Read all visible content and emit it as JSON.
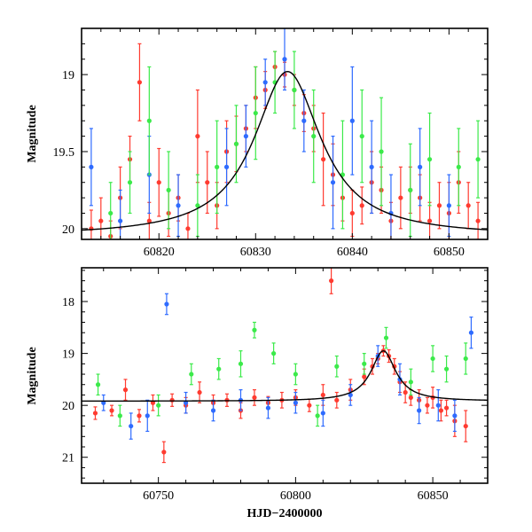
{
  "chart_data": [
    {
      "type": "scatter",
      "panel": "top",
      "title": "",
      "xlabel": "",
      "ylabel": "Magnitude",
      "xlim": [
        60812,
        60854
      ],
      "ylim": [
        20.07,
        18.7
      ],
      "y_inverted": true,
      "xticks": [
        60820,
        60830,
        60840,
        60850
      ],
      "yticks": [
        19,
        19.5,
        20
      ],
      "ytick_labels": [
        "19",
        "19.5",
        "20"
      ],
      "model": {
        "baseline": 20.05,
        "peak_x": 60833.3,
        "peak_y": 18.98,
        "tE": 4.2
      },
      "series": [
        {
          "color": "#ff3b30",
          "points": [
            [
              60813,
              20.0,
              0.12
            ],
            [
              60814,
              19.95,
              0.15
            ],
            [
              60815,
              20.05,
              0.1
            ],
            [
              60816,
              19.8,
              0.2
            ],
            [
              60817,
              19.55,
              0.15
            ],
            [
              60818,
              19.05,
              0.25
            ],
            [
              60819,
              19.95,
              0.12
            ],
            [
              60820,
              19.7,
              0.22
            ],
            [
              60821,
              19.9,
              0.15
            ],
            [
              60822,
              19.8,
              0.15
            ],
            [
              60823,
              20.0,
              0.1
            ],
            [
              60824,
              19.4,
              0.3
            ],
            [
              60825,
              19.7,
              0.2
            ],
            [
              60826,
              19.85,
              0.15
            ],
            [
              60827,
              19.5,
              0.2
            ],
            [
              60828,
              19.45,
              0.18
            ],
            [
              60829,
              19.35,
              0.15
            ],
            [
              60830,
              19.15,
              0.2
            ],
            [
              60831,
              19.1,
              0.12
            ],
            [
              60832,
              18.95,
              0.1
            ],
            [
              60833,
              19.0,
              0.08
            ],
            [
              60834,
              19.1,
              0.1
            ],
            [
              60835,
              19.25,
              0.12
            ],
            [
              60836,
              19.35,
              0.15
            ],
            [
              60837,
              19.55,
              0.3
            ],
            [
              60838,
              19.65,
              0.2
            ],
            [
              60839,
              19.8,
              0.15
            ],
            [
              60840,
              19.9,
              0.15
            ],
            [
              60841,
              19.85,
              0.12
            ],
            [
              60842,
              19.7,
              0.2
            ],
            [
              60843,
              19.75,
              0.15
            ],
            [
              60844,
              19.95,
              0.12
            ],
            [
              60845,
              19.8,
              0.2
            ],
            [
              60846,
              19.75,
              0.15
            ],
            [
              60847,
              19.8,
              0.15
            ],
            [
              60848,
              19.95,
              0.12
            ],
            [
              60849,
              19.85,
              0.15
            ],
            [
              60850,
              19.9,
              0.2
            ],
            [
              60851,
              19.7,
              0.2
            ],
            [
              60852,
              19.85,
              0.15
            ],
            [
              60853,
              19.95,
              0.12
            ]
          ]
        },
        {
          "color": "#2e6bff",
          "points": [
            [
              60813,
              19.6,
              0.25
            ],
            [
              60816,
              19.95,
              0.2
            ],
            [
              60819,
              19.65,
              0.25
            ],
            [
              60822,
              19.85,
              0.2
            ],
            [
              60827,
              19.6,
              0.25
            ],
            [
              60829,
              19.4,
              0.2
            ],
            [
              60831,
              19.05,
              0.15
            ],
            [
              60833,
              18.9,
              0.2
            ],
            [
              60835,
              19.3,
              0.2
            ],
            [
              60838,
              19.7,
              0.3
            ],
            [
              60840,
              19.3,
              0.35
            ],
            [
              60842,
              19.6,
              0.3
            ],
            [
              60844,
              19.9,
              0.25
            ],
            [
              60847,
              19.6,
              0.25
            ],
            [
              60850,
              19.85,
              0.2
            ]
          ]
        },
        {
          "color": "#3bea4a",
          "points": [
            [
              60815,
              19.9,
              0.2
            ],
            [
              60817,
              19.7,
              0.2
            ],
            [
              60819,
              19.3,
              0.35
            ],
            [
              60821,
              19.75,
              0.25
            ],
            [
              60824,
              19.85,
              0.2
            ],
            [
              60826,
              19.6,
              0.3
            ],
            [
              60828,
              19.45,
              0.25
            ],
            [
              60830,
              19.25,
              0.3
            ],
            [
              60832,
              19.05,
              0.2
            ],
            [
              60834,
              19.1,
              0.25
            ],
            [
              60836,
              19.4,
              0.3
            ],
            [
              60839,
              19.65,
              0.35
            ],
            [
              60841,
              19.4,
              0.3
            ],
            [
              60843,
              19.5,
              0.35
            ],
            [
              60846,
              19.75,
              0.3
            ],
            [
              60848,
              19.55,
              0.3
            ],
            [
              60851,
              19.6,
              0.25
            ],
            [
              60853,
              19.55,
              0.25
            ]
          ]
        }
      ]
    },
    {
      "type": "scatter",
      "panel": "bottom",
      "title": "",
      "xlabel": "HJD−2400000",
      "ylabel": "Magnitude",
      "xlim": [
        60722,
        60870
      ],
      "ylim": [
        21.5,
        17.35
      ],
      "y_inverted": true,
      "xticks": [
        60750,
        60800,
        60850
      ],
      "yticks": [
        18,
        19,
        20,
        21
      ],
      "ytick_labels": [
        "18",
        "19",
        "20",
        "21"
      ],
      "model": {
        "baseline": 19.92,
        "peak_x": 60832.0,
        "peak_y": 18.95,
        "tE": 5.5
      },
      "series": [
        {
          "color": "#ff3b30",
          "points": [
            [
              60727,
              20.15,
              0.12
            ],
            [
              60733,
              20.1,
              0.1
            ],
            [
              60738,
              19.7,
              0.2
            ],
            [
              60743,
              20.2,
              0.12
            ],
            [
              60748,
              19.95,
              0.15
            ],
            [
              60752,
              20.9,
              0.2
            ],
            [
              60755,
              19.9,
              0.12
            ],
            [
              60760,
              20.0,
              0.15
            ],
            [
              60765,
              19.75,
              0.2
            ],
            [
              60770,
              19.95,
              0.15
            ],
            [
              60775,
              19.9,
              0.12
            ],
            [
              60780,
              20.1,
              0.15
            ],
            [
              60785,
              19.85,
              0.15
            ],
            [
              60790,
              19.95,
              0.12
            ],
            [
              60795,
              19.9,
              0.15
            ],
            [
              60800,
              19.85,
              0.15
            ],
            [
              60805,
              20.0,
              0.12
            ],
            [
              60810,
              19.8,
              0.2
            ],
            [
              60813,
              17.6,
              0.25
            ],
            [
              60815,
              19.9,
              0.15
            ],
            [
              60820,
              19.7,
              0.2
            ],
            [
              60825,
              19.45,
              0.15
            ],
            [
              60828,
              19.25,
              0.15
            ],
            [
              60830,
              19.1,
              0.1
            ],
            [
              60832,
              18.95,
              0.1
            ],
            [
              60834,
              19.05,
              0.12
            ],
            [
              60836,
              19.25,
              0.15
            ],
            [
              60838,
              19.55,
              0.2
            ],
            [
              60840,
              19.75,
              0.2
            ],
            [
              60842,
              19.85,
              0.15
            ],
            [
              60845,
              19.9,
              0.2
            ],
            [
              60848,
              20.0,
              0.15
            ],
            [
              60850,
              19.85,
              0.2
            ],
            [
              60853,
              20.1,
              0.2
            ],
            [
              60855,
              20.05,
              0.15
            ],
            [
              60858,
              20.3,
              0.3
            ],
            [
              60862,
              20.4,
              0.3
            ]
          ]
        },
        {
          "color": "#2e6bff",
          "points": [
            [
              60730,
              19.95,
              0.15
            ],
            [
              60740,
              20.4,
              0.25
            ],
            [
              60746,
              20.2,
              0.3
            ],
            [
              60753,
              18.05,
              0.2
            ],
            [
              60760,
              19.95,
              0.2
            ],
            [
              60770,
              20.1,
              0.2
            ],
            [
              60780,
              19.9,
              0.2
            ],
            [
              60790,
              20.05,
              0.2
            ],
            [
              60800,
              19.95,
              0.2
            ],
            [
              60810,
              20.15,
              0.25
            ],
            [
              60820,
              19.8,
              0.2
            ],
            [
              60830,
              19.05,
              0.2
            ],
            [
              60838,
              19.5,
              0.3
            ],
            [
              60845,
              20.1,
              0.25
            ],
            [
              60852,
              20.0,
              0.3
            ],
            [
              60858,
              20.2,
              0.3
            ],
            [
              60864,
              18.6,
              0.3
            ]
          ]
        },
        {
          "color": "#3bea4a",
          "points": [
            [
              60728,
              19.6,
              0.2
            ],
            [
              60736,
              20.2,
              0.2
            ],
            [
              60750,
              20.0,
              0.2
            ],
            [
              60762,
              19.4,
              0.2
            ],
            [
              60772,
              19.3,
              0.2
            ],
            [
              60780,
              19.2,
              0.25
            ],
            [
              60785,
              18.55,
              0.15
            ],
            [
              60792,
              19.0,
              0.2
            ],
            [
              60800,
              19.4,
              0.2
            ],
            [
              60808,
              20.2,
              0.2
            ],
            [
              60815,
              19.25,
              0.2
            ],
            [
              60825,
              19.2,
              0.2
            ],
            [
              60833,
              18.7,
              0.2
            ],
            [
              60842,
              19.55,
              0.25
            ],
            [
              60850,
              19.1,
              0.25
            ],
            [
              60855,
              19.3,
              0.25
            ],
            [
              60862,
              19.1,
              0.3
            ]
          ]
        }
      ]
    }
  ]
}
